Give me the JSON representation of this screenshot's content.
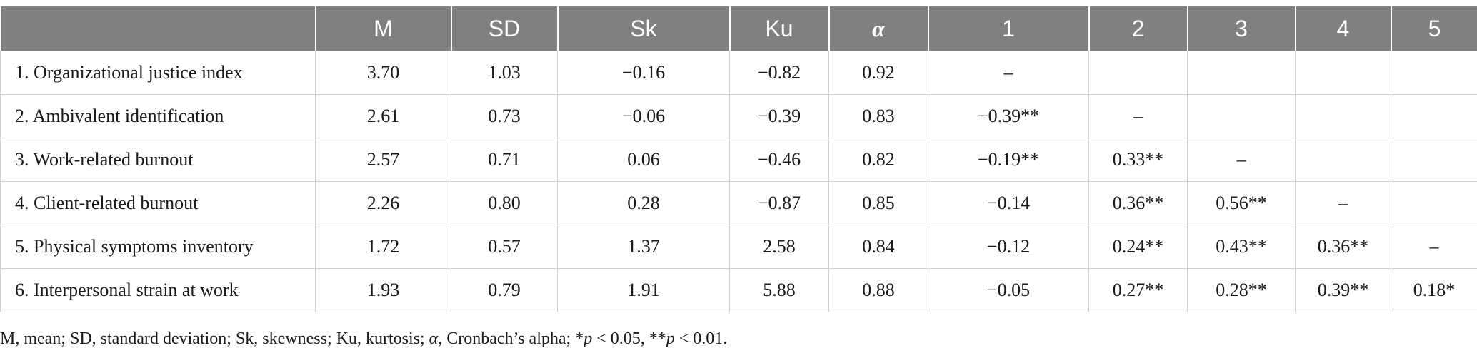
{
  "table": {
    "columns": [
      "",
      "M",
      "SD",
      "Sk",
      "Ku",
      "α",
      "1",
      "2",
      "3",
      "4",
      "5"
    ],
    "rows": [
      {
        "label": "1. Organizational justice index",
        "cells": [
          "3.70",
          "1.03",
          "−0.16",
          "−0.82",
          "0.92",
          "–",
          "",
          "",
          "",
          ""
        ]
      },
      {
        "label": "2. Ambivalent identification",
        "cells": [
          "2.61",
          "0.73",
          "−0.06",
          "−0.39",
          "0.83",
          "−0.39**",
          "–",
          "",
          "",
          ""
        ]
      },
      {
        "label": "3. Work-related burnout",
        "cells": [
          "2.57",
          "0.71",
          "0.06",
          "−0.46",
          "0.82",
          "−0.19**",
          "0.33**",
          "–",
          "",
          ""
        ]
      },
      {
        "label": "4. Client-related burnout",
        "cells": [
          "2.26",
          "0.80",
          "0.28",
          "−0.87",
          "0.85",
          "−0.14",
          "0.36**",
          "0.56**",
          "–",
          ""
        ]
      },
      {
        "label": "5. Physical symptoms inventory",
        "cells": [
          "1.72",
          "0.57",
          "1.37",
          "2.58",
          "0.84",
          "−0.12",
          "0.24**",
          "0.43**",
          "0.36**",
          "–"
        ]
      },
      {
        "label": "6. Interpersonal strain at work",
        "cells": [
          "1.93",
          "0.79",
          "1.91",
          "5.88",
          "0.88",
          "−0.05",
          "0.27**",
          "0.28**",
          "0.39**",
          "0.18*"
        ]
      }
    ]
  },
  "footnote": {
    "part1": "M, mean; SD, standard deviation; Sk, skewness; Ku, kurtosis; ",
    "alpha": "α",
    "part2": ", Cronbach’s alpha; *",
    "p1": "p",
    "part3": " < 0.05, **",
    "p2": "p",
    "part4": " < 0.01."
  }
}
